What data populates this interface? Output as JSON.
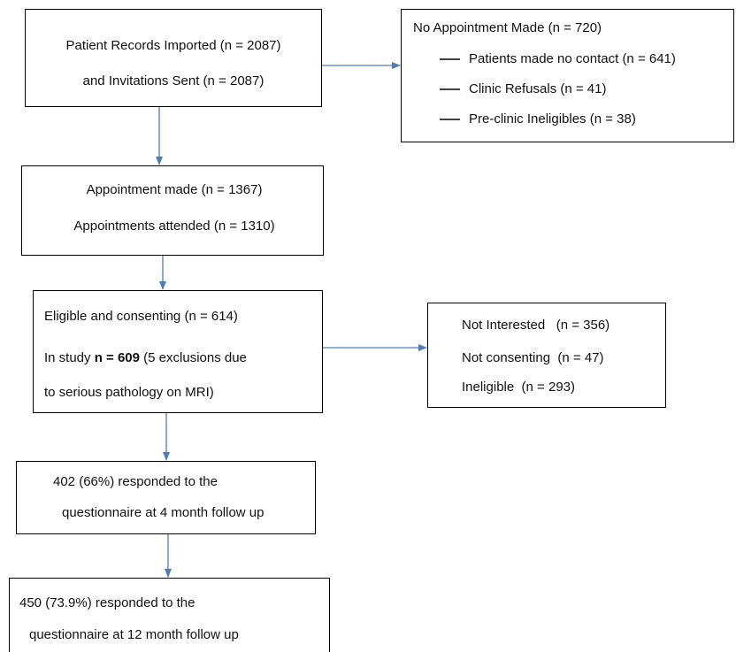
{
  "nodes": [
    {
      "lines": [
        "Patient Records Imported (n = 2087)",
        "and Invitations Sent (n = 2087)"
      ]
    },
    {
      "title": "No Appointment Made (n = 720)",
      "items": [
        "Patients made no contact (n = 641)",
        "Clinic Refusals (n = 41)",
        "Pre-clinic Ineligibles (n = 38)"
      ]
    },
    {
      "lines": [
        "Appointment made (n = 1367)",
        "Appointments attended (n = 1310)"
      ]
    },
    {
      "lines": [
        "Eligible and consenting (n = 614)",
        [
          {
            "text": "In study "
          },
          {
            "text": "n = 609",
            "bold": true
          },
          {
            "text": " (5 exclusions due"
          }
        ],
        "to serious pathology on MRI)"
      ]
    },
    {
      "lines": [
        "Not Interested   (n = 356)",
        "Not consenting  (n = 47)",
        "Ineligible  (n = 293)"
      ]
    },
    {
      "lines": [
        "402 (66%) responded to the",
        "questionnaire at 4 month follow up"
      ]
    },
    {
      "lines": [
        "450 (73.9%) responded to the",
        "questionnaire at 12 month follow up"
      ]
    }
  ]
}
